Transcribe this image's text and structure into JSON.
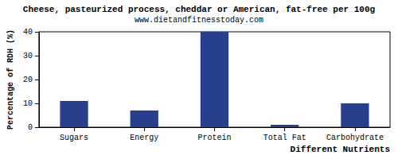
{
  "chart_data": {
    "type": "bar",
    "title": "Cheese, pasteurized process, cheddar or American, fat-free per 100g",
    "subtitle": "www.dietandfitnesstoday.com",
    "x_label": "Different Nutrients",
    "y_label": "Percentage of RDH (%)",
    "categories": [
      "Sugars",
      "Energy",
      "Protein",
      "Total Fat",
      "Carbohydrate"
    ],
    "values": [
      11,
      7,
      40,
      1,
      10
    ],
    "color": "#283f8e",
    "ylim": [
      0,
      40
    ],
    "yticks": [
      0,
      10,
      20,
      30,
      40
    ],
    "grid": false
  }
}
